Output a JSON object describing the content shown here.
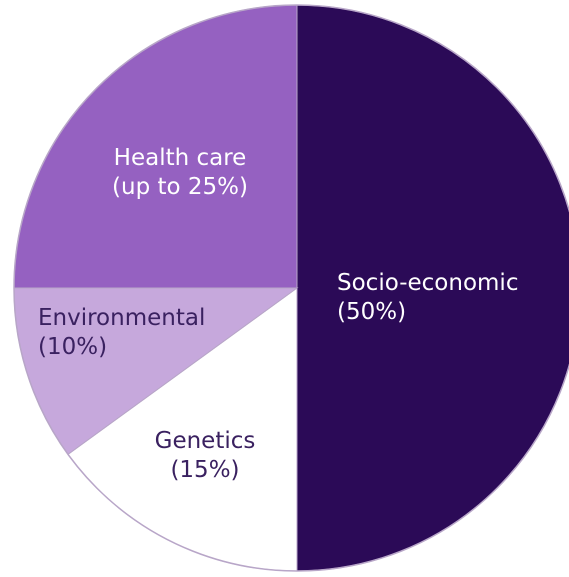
{
  "chart_data": {
    "type": "pie",
    "title": "",
    "slices": [
      {
        "label_line1": "Socio-economic",
        "label_line2": "(50%)",
        "value": 50,
        "color": "#2b0a57",
        "text_color": "#ffffff"
      },
      {
        "label_line1": "Genetics",
        "label_line2": "(15%)",
        "value": 15,
        "color": "#ffffff",
        "text_color": "#3a2160"
      },
      {
        "label_line1": "Environmental",
        "label_line2": "(10%)",
        "value": 10,
        "color": "#c6a8dc",
        "text_color": "#3a2160"
      },
      {
        "label_line1": "Health care",
        "label_line2": "(up to 25%)",
        "value": 25,
        "color": "#9561c1",
        "text_color": "#ffffff"
      }
    ],
    "outline_color": "#b8a6c8"
  }
}
